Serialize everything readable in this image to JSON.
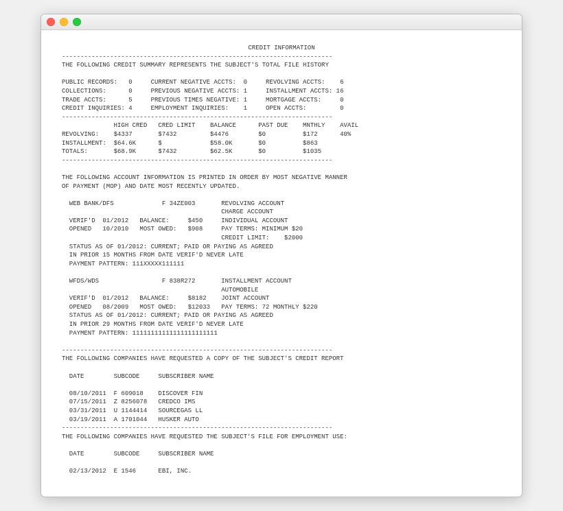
{
  "window": {
    "traffic_colors": {
      "close": "#ff5f57",
      "min": "#ffbd2e",
      "max": "#28c940"
    }
  },
  "report": {
    "title": "CREDIT INFORMATION",
    "divider": "-------------------------------------------------------------------------",
    "summary_header": "THE FOLLOWING CREDIT SUMMARY REPRESENTS THE SUBJECT'S TOTAL FILE HISTORY",
    "summary_rows": [
      "PUBLIC RECORDS:   0     CURRENT NEGATIVE ACCTS:  0     REVOLVING ACCTS:    6",
      "COLLECTIONS:      0     PREVIOUS NEGATIVE ACCTS: 1     INSTALLMENT ACCTS: 16",
      "TRADE ACCTS:      5     PREVIOUS TIMES NEGATIVE: 1     MORTGAGE ACCTS:     0",
      "CREDIT INQUIRIES: 4     EMPLOYMENT INQUIRIES:    1     OPEN ACCTS:         0"
    ],
    "balance_header": "              HIGH CRED   CRED LIMIT    BALANCE      PAST DUE    MNTHLY    AVAIL",
    "balance_rows": [
      "REVOLVING:    $4337       $7432         $4476        $0          $172      40%",
      "INSTALLMENT:  $64.6K      $             $58.0K       $0          $863",
      "TOTALS:       $68.9K      $7432         $62.5K       $0          $1035"
    ],
    "acct_intro1": "THE FOLLOWING ACCOUNT INFORMATION IS PRINTED IN ORDER BY MOST NEGATIVE MANNER",
    "acct_intro2": "OF PAYMENT (MOP) AND DATE MOST RECENTLY UPDATED.",
    "acct1": [
      "  WEB BANK/DFS             F 34ZE003       REVOLVING ACCOUNT",
      "                                           CHARGE ACCOUNT",
      "  VERIF'D  01/2012   BALANCE:     $450     INDIVIDUAL ACCOUNT",
      "  OPENED   10/2010   MOST OWED:   $908     PAY TERMS: MINIMUM $20",
      "                                           CREDIT LIMIT:    $2000",
      "  STATUS AS OF 01/2012: CURRENT; PAID OR PAYING AS AGREED",
      "  IN PRIOR 15 MONTHS FROM DATE VERIF'D NEVER LATE",
      "  PAYMENT PATTERN: 111XXXXX111111"
    ],
    "acct2": [
      "  WFDS/WDS                 F 838R272       INSTALLMENT ACCOUNT",
      "                                           AUTOMOBILE",
      "  VERIF'D  01/2012   BALANCE:     $8182    JOINT ACCOUNT",
      "  OPENED   08/2009   MOST OWED:   $12033   PAY TERMS: 72 MONTHLY $220",
      "  STATUS AS OF 01/2012: CURRENT; PAID OR PAYING AS AGREED",
      "  IN PRIOR 29 MONTHS FROM DATE VERIF'D NEVER LATE",
      "  PAYMENT PATTERN: 11111111111111111111111"
    ],
    "inq_credit_header": "THE FOLLOWING COMPANIES HAVE REQUESTED A COPY OF THE SUBJECT'S CREDIT REPORT",
    "inq_cols": "  DATE        SUBCODE     SUBSCRIBER NAME",
    "inq_credit_rows": [
      "  08/10/2011  F 609018    DISCOVER FIN",
      "  07/15/2011  Z 8256078   CREDCO IMS",
      "  03/31/2011  U 1144414   SOURCEGAS LL",
      "  03/19/2011  A 1701044   HUSKER AUTO"
    ],
    "inq_emp_header": "THE FOLLOWING COMPANIES HAVE REQUESTED THE SUBJECT'S FILE FOR EMPLOYMENT USE:",
    "inq_emp_rows": [
      "  02/13/2012  E 1546      EBI, INC."
    ]
  }
}
